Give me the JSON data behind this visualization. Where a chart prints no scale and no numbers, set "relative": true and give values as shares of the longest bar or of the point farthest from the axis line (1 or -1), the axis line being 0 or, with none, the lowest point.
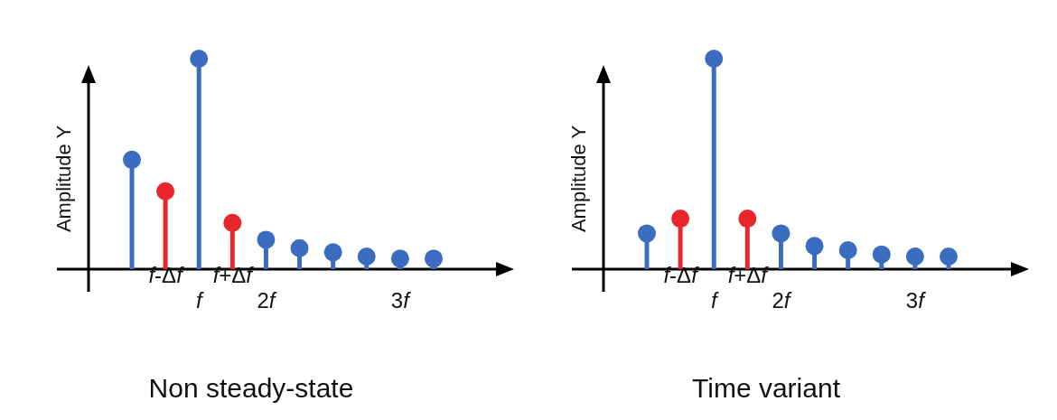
{
  "chart_data": [
    {
      "type": "lollipop",
      "title": "Non steady-state",
      "ylabel": "Amplitude Y",
      "relative": true,
      "marker": "circle",
      "categories": [
        null,
        "f-Δf",
        "f",
        "f+Δf",
        "2f",
        null,
        null,
        null,
        "3f",
        null
      ],
      "values": [
        0.52,
        0.37,
        1,
        0.22,
        0.14,
        0.1,
        0.08,
        0.06,
        0.05,
        0.05
      ],
      "colors": [
        "#3a6cc0",
        "#e8262b",
        "#3a6cc0",
        "#e8262b",
        "#3a6cc0",
        "#3a6cc0",
        "#3a6cc0",
        "#3a6cc0",
        "#3a6cc0",
        "#3a6cc0"
      ]
    },
    {
      "type": "lollipop",
      "title": "Time variant",
      "ylabel": "Amplitude Y",
      "relative": true,
      "marker": "circle",
      "categories": [
        null,
        "f-Δf",
        "f",
        "f+Δf",
        "2f",
        null,
        null,
        null,
        "3f",
        null
      ],
      "values": [
        0.17,
        0.24,
        1,
        0.24,
        0.17,
        0.11,
        0.09,
        0.07,
        0.06,
        0.06
      ],
      "colors": [
        "#3a6cc0",
        "#e8262b",
        "#3a6cc0",
        "#e8262b",
        "#3a6cc0",
        "#3a6cc0",
        "#3a6cc0",
        "#3a6cc0",
        "#3a6cc0",
        "#3a6cc0"
      ]
    }
  ]
}
